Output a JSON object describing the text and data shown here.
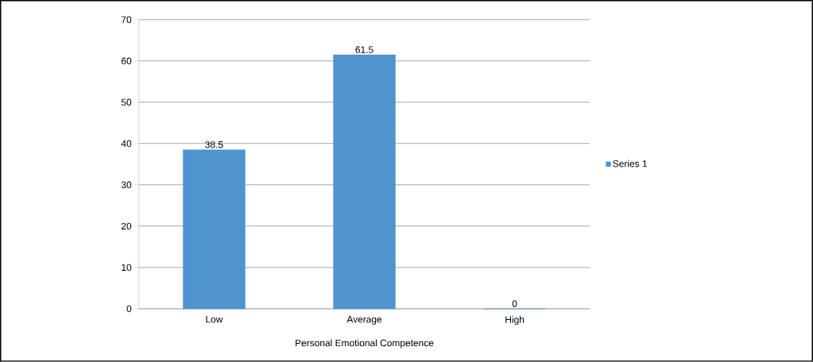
{
  "chart_data": {
    "type": "bar",
    "xlabel": "Personal Emotional Competence",
    "categories": [
      "Low",
      "Average",
      "High"
    ],
    "series": [
      {
        "name": "Series 1",
        "color": "#4f93cf",
        "values": [
          38.5,
          61.5,
          0
        ]
      }
    ],
    "data_labels": true,
    "ylim": [
      0,
      70
    ],
    "yticks": [
      0,
      10,
      20,
      30,
      40,
      50,
      60,
      70
    ],
    "grid": "y",
    "legend": "right"
  }
}
